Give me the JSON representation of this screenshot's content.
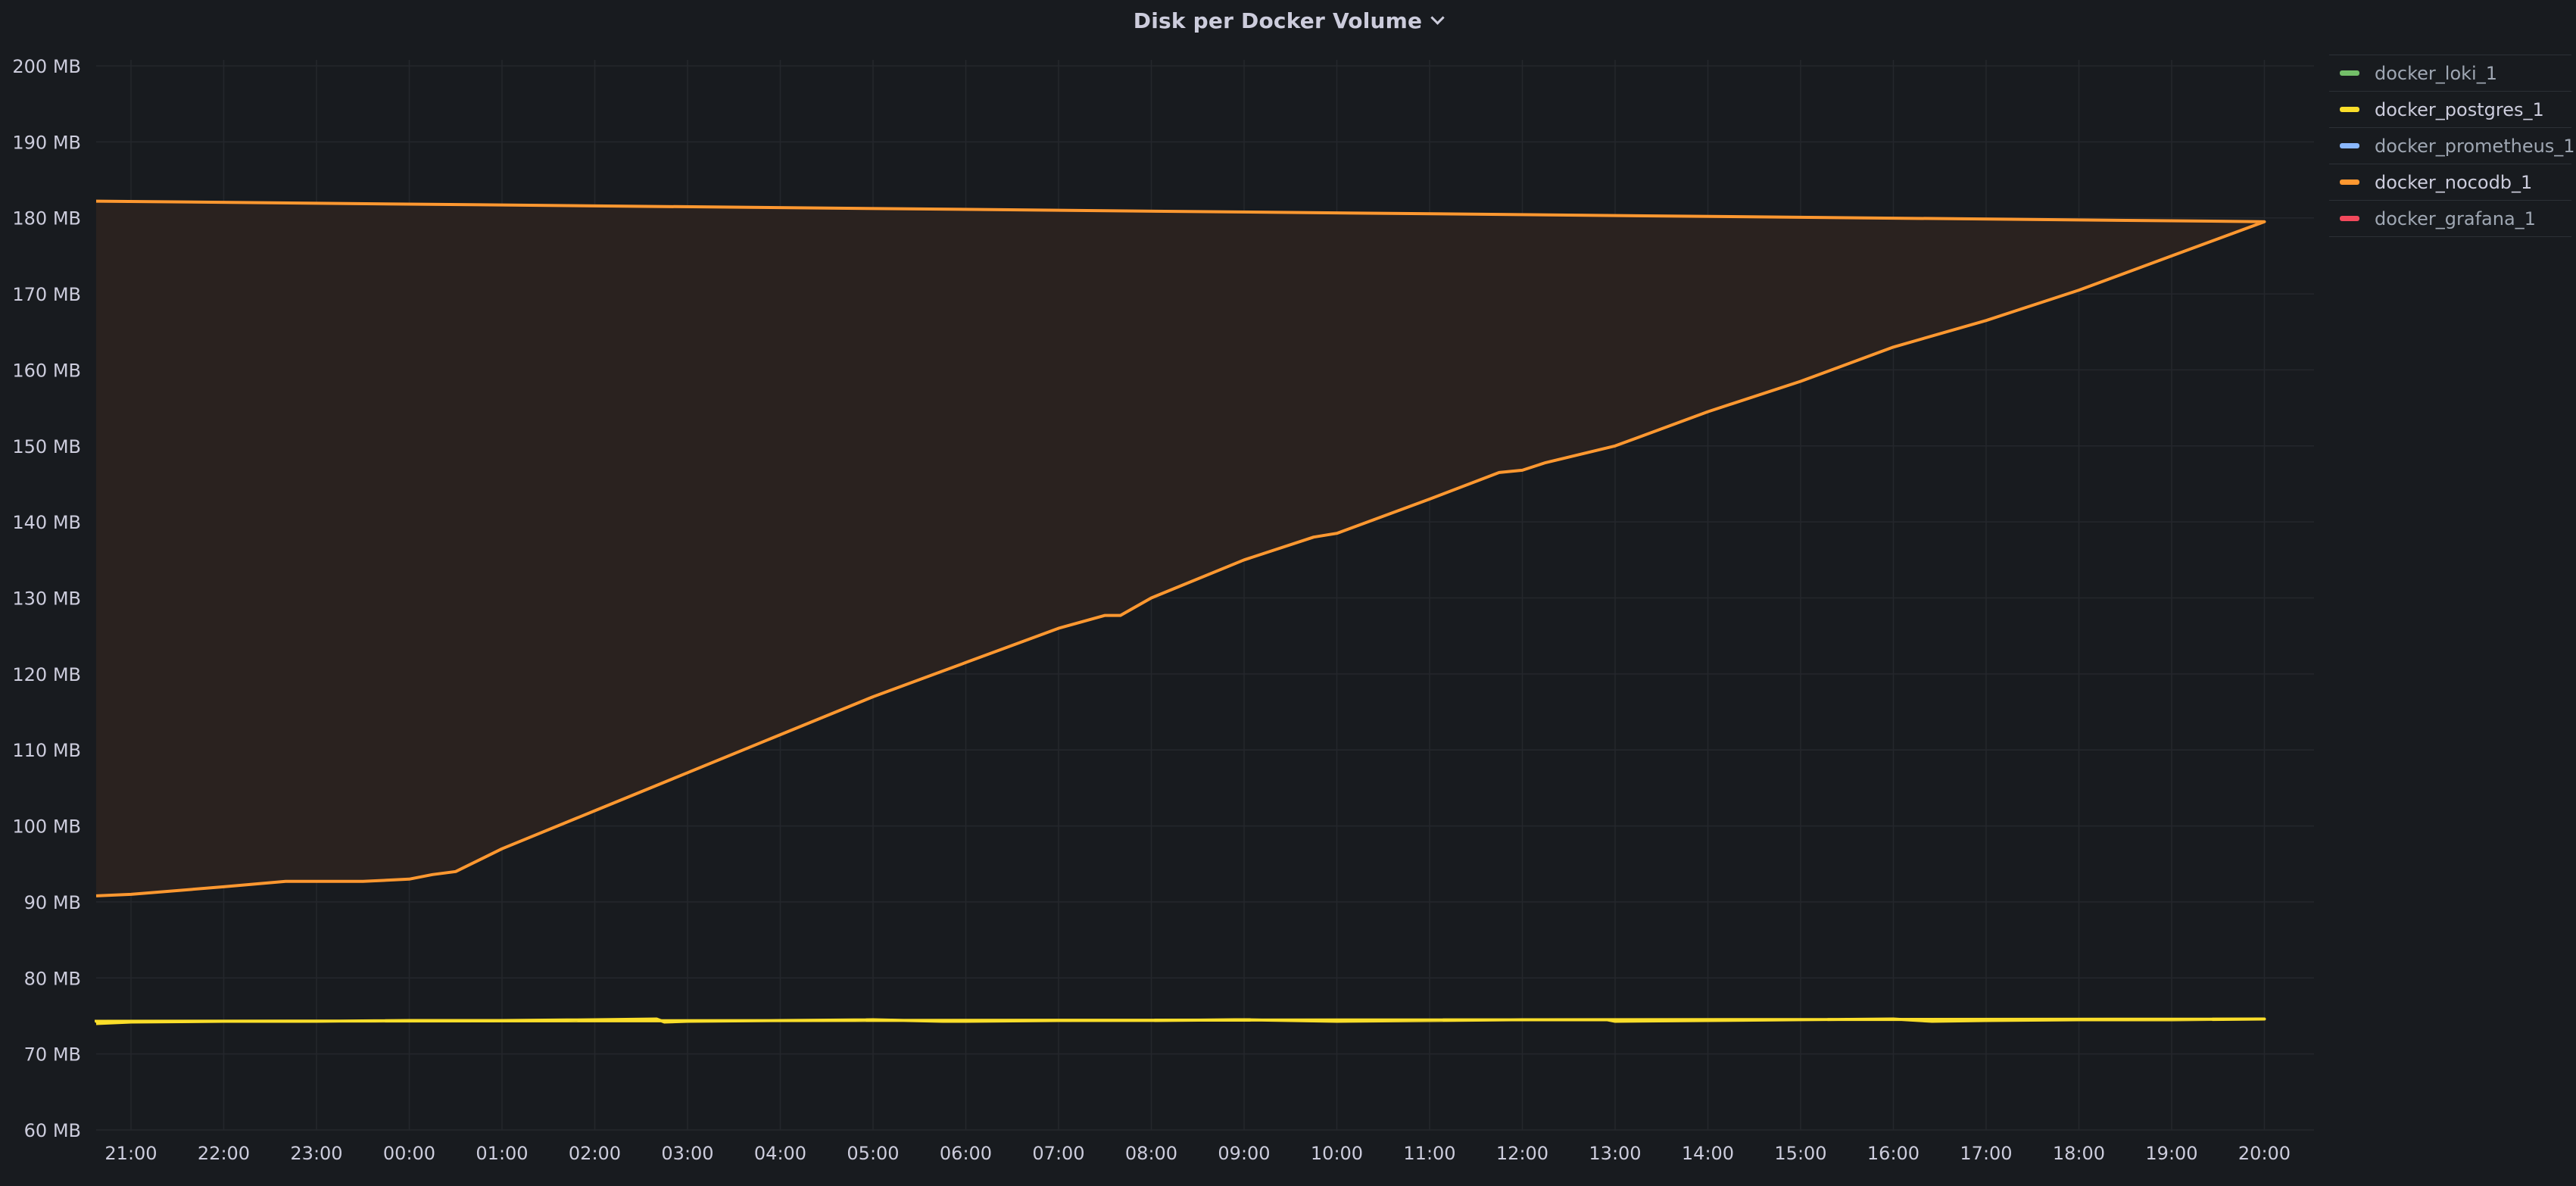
{
  "panel": {
    "title": "Disk per Docker Volume"
  },
  "chart_data": {
    "type": "area",
    "title": "Disk per Docker Volume",
    "xlabel": "",
    "ylabel": "",
    "ylim": [
      60,
      200
    ],
    "y_unit": "MB",
    "y_ticks": [
      "60 MB",
      "70 MB",
      "80 MB",
      "90 MB",
      "100 MB",
      "110 MB",
      "120 MB",
      "130 MB",
      "140 MB",
      "150 MB",
      "160 MB",
      "170 MB",
      "180 MB",
      "190 MB",
      "200 MB"
    ],
    "x_ticks": [
      "21:00",
      "22:00",
      "23:00",
      "00:00",
      "01:00",
      "02:00",
      "03:00",
      "04:00",
      "05:00",
      "06:00",
      "07:00",
      "08:00",
      "09:00",
      "10:00",
      "11:00",
      "12:00",
      "13:00",
      "14:00",
      "15:00",
      "16:00",
      "17:00",
      "18:00",
      "19:00",
      "20:00"
    ],
    "xlim": [
      "20:36",
      "20:35"
    ],
    "grid": true,
    "legend_position": "right",
    "series": [
      {
        "name": "docker_loki_1",
        "color": "#73bf69",
        "visible": false,
        "x": [],
        "values": []
      },
      {
        "name": "docker_postgres_1",
        "color": "#fade2a",
        "visible": true,
        "fill_color": "#3f3424",
        "x": [
          "20:36",
          "21:00",
          "22:00",
          "23:00",
          "00:00",
          "01:00",
          "02:00",
          "02:40",
          "02:45",
          "03:00",
          "04:00",
          "05:00",
          "05:45",
          "06:00",
          "07:00",
          "08:00",
          "09:00",
          "10:00",
          "11:00",
          "12:00",
          "12:55",
          "13:00",
          "14:00",
          "15:00",
          "16:00",
          "16:25",
          "17:00",
          "18:00",
          "19:00",
          "20:00",
          "20:30",
          "20:35"
        ],
        "values": [
          74.0,
          74.2,
          74.3,
          74.3,
          74.4,
          74.4,
          74.5,
          74.6,
          74.2,
          74.3,
          74.4,
          74.5,
          74.3,
          74.3,
          74.4,
          74.4,
          74.5,
          74.3,
          74.4,
          74.5,
          74.5,
          74.3,
          74.4,
          74.5,
          74.6,
          74.3,
          74.4,
          74.5,
          74.5,
          74.6,
          74.3,
          74.5
        ]
      },
      {
        "name": "docker_prometheus_1",
        "color": "#8ab8ff",
        "visible": false,
        "x": [],
        "values": []
      },
      {
        "name": "docker_nocodb_1",
        "color": "#ff9830",
        "visible": true,
        "fill_color": "#2a221f",
        "x": [
          "20:36",
          "21:00",
          "22:00",
          "22:40",
          "23:00",
          "23:30",
          "00:00",
          "00:15",
          "00:30",
          "01:00",
          "02:00",
          "03:00",
          "04:00",
          "05:00",
          "06:00",
          "07:00",
          "07:30",
          "07:40",
          "08:00",
          "09:00",
          "09:45",
          "10:00",
          "11:00",
          "11:45",
          "12:00",
          "12:15",
          "13:00",
          "14:00",
          "15:00",
          "16:00",
          "17:00",
          "17:30",
          "18:00",
          "19:00",
          "20:00",
          "20:35"
        ],
        "values": [
          90.8,
          91.0,
          92.0,
          92.7,
          92.7,
          92.7,
          93.0,
          93.6,
          94.0,
          97.0,
          102.0,
          107.0,
          112.0,
          117.0,
          121.5,
          126.0,
          127.7,
          127.7,
          130.0,
          135.0,
          138.0,
          138.5,
          143.0,
          146.5,
          146.8,
          147.8,
          150.0,
          154.5,
          158.5,
          163.0,
          166.5,
          168.5,
          170.5,
          175.0,
          179.5,
          182.2
        ]
      },
      {
        "name": "docker_grafana_1",
        "color": "#f2495c",
        "visible": false,
        "x": [],
        "values": []
      }
    ]
  },
  "legend": {
    "items": [
      {
        "label": "docker_loki_1",
        "color": "#73bf69",
        "active": false
      },
      {
        "label": "docker_postgres_1",
        "color": "#fade2a",
        "active": true
      },
      {
        "label": "docker_prometheus_1",
        "color": "#8ab8ff",
        "active": false
      },
      {
        "label": "docker_nocodb_1",
        "color": "#ff9830",
        "active": true
      },
      {
        "label": "docker_grafana_1",
        "color": "#f2495c",
        "active": false
      }
    ]
  },
  "theme": {
    "background": "#181b1f",
    "grid": "#24272c",
    "text": "#ccccdc",
    "text_muted": "#9fa7b3"
  }
}
